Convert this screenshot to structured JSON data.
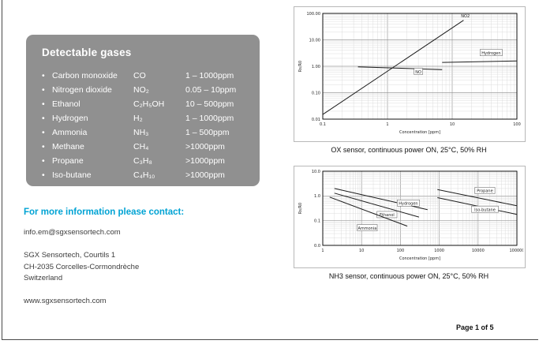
{
  "page": {
    "page_label": "Page 1 of 5"
  },
  "colors": {
    "accent": "#00a3d4",
    "panel_gray": "#909090"
  },
  "gases_box": {
    "title": "Detectable gases",
    "bullet": "•",
    "items": [
      {
        "name": "Carbon monoxide",
        "formula": "CO",
        "range": "1 – 1000ppm"
      },
      {
        "name": "Nitrogen dioxide",
        "formula": "NO₂",
        "range": "0.05 – 10ppm"
      },
      {
        "name": "Ethanol",
        "formula": "C₂H₅OH",
        "range": "10 – 500ppm"
      },
      {
        "name": "Hydrogen",
        "formula": "H₂",
        "range": "1 – 1000ppm"
      },
      {
        "name": "Ammonia",
        "formula": "NH₃",
        "range": "1 – 500ppm"
      },
      {
        "name": "Methane",
        "formula": "CH₄",
        "range": ">1000ppm"
      },
      {
        "name": "Propane",
        "formula": "C₃H₈",
        "range": ">1000ppm"
      },
      {
        "name": "Iso-butane",
        "formula": "C₄H₁₀",
        "range": ">1000ppm"
      }
    ]
  },
  "contact": {
    "heading": "For more information please contact:",
    "email": "info.em@sgxsensortech.com",
    "address_lines": [
      "SGX Sensortech, Courtils 1",
      "CH-2035 Corcelles-Cormondrèche",
      "Switzerland"
    ],
    "website": "www.sgxsensortech.com"
  },
  "chart_data": [
    {
      "type": "line",
      "caption": "OX sensor, continuous power ON, 25°C, 50% RH",
      "xlabel": "Concentration [ppm]",
      "ylabel": "Rs/R0",
      "xscale": "log",
      "yscale": "log",
      "xlim": [
        0.1,
        100
      ],
      "ylim": [
        0.01,
        100
      ],
      "xticks": [
        "0.1",
        "1",
        "10",
        "100"
      ],
      "yticks": [
        "100.00",
        "10.00",
        "1.00",
        "0.10",
        "0.01"
      ],
      "grid": true,
      "legend_position": "inline-labels",
      "series": [
        {
          "name": "NO2",
          "points": [
            [
              0.1,
              0.015
            ],
            [
              15,
              55
            ]
          ],
          "label_at": [
            16,
            80
          ],
          "boxed": false
        },
        {
          "name": "Hydrogen",
          "points": [
            [
              7,
              1.4
            ],
            [
              100,
              1.6
            ]
          ],
          "label_at": [
            40,
            3.2
          ],
          "boxed": true
        },
        {
          "name": "NO",
          "points": [
            [
              0.35,
              0.95
            ],
            [
              7,
              0.75
            ]
          ],
          "label_at": [
            3,
            0.62
          ],
          "boxed": true
        }
      ]
    },
    {
      "type": "line",
      "caption": "NH3 sensor, continuous power ON, 25°C, 50% RH",
      "xlabel": "Concentration [ppm]",
      "ylabel": "Rs/R0",
      "xscale": "log",
      "yscale": "log",
      "xlim": [
        1,
        100000
      ],
      "ylim": [
        0.01,
        10
      ],
      "xticks": [
        "1",
        "10",
        "100",
        "1000",
        "10000",
        "100000"
      ],
      "yticks": [
        "10.0",
        "1.0",
        "0.1",
        "0.0"
      ],
      "grid": true,
      "legend_position": "inline-labels",
      "series": [
        {
          "name": "Hydrogen",
          "points": [
            [
              2,
              2.0
            ],
            [
              500,
              0.28
            ]
          ],
          "label_at": [
            160,
            0.5
          ],
          "boxed": true
        },
        {
          "name": "Ethanol",
          "points": [
            [
              2,
              1.3
            ],
            [
              300,
              0.14
            ]
          ],
          "label_at": [
            45,
            0.17
          ],
          "boxed": true
        },
        {
          "name": "Ammonia",
          "points": [
            [
              1.5,
              0.9
            ],
            [
              150,
              0.06
            ]
          ],
          "label_at": [
            14,
            0.05
          ],
          "boxed": true
        },
        {
          "name": "Propane",
          "points": [
            [
              900,
              1.8
            ],
            [
              100000,
              0.4
            ]
          ],
          "label_at": [
            15000,
            1.6
          ],
          "boxed": true
        },
        {
          "name": "Iso-butane",
          "points": [
            [
              900,
              0.85
            ],
            [
              100000,
              0.18
            ]
          ],
          "label_at": [
            15000,
            0.28
          ],
          "boxed": true
        }
      ]
    }
  ]
}
